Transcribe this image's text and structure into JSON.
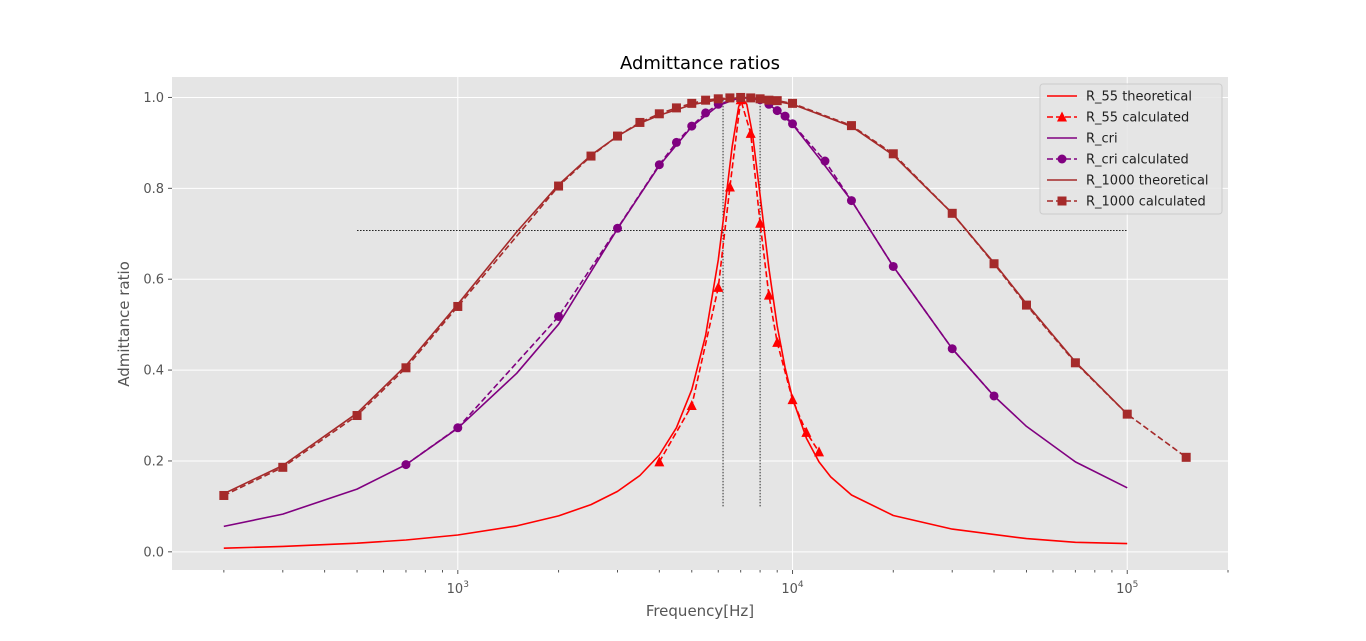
{
  "chart_data": {
    "type": "line",
    "title": "Admittance ratios",
    "xlabel": "Frequency[Hz]",
    "ylabel": "Admittance ratio",
    "xscale": "log",
    "xlim": [
      140,
      200000
    ],
    "ylim": [
      -0.04,
      1.045
    ],
    "grid": true,
    "legend_position": "top-right",
    "x_ticks": [
      {
        "value": 1000,
        "base": "10",
        "exp": "3"
      },
      {
        "value": 10000,
        "base": "10",
        "exp": "4"
      },
      {
        "value": 100000,
        "base": "10",
        "exp": "5"
      }
    ],
    "y_ticks": [
      {
        "value": 0.0,
        "label": "0.0"
      },
      {
        "value": 0.2,
        "label": "0.2"
      },
      {
        "value": 0.4,
        "label": "0.4"
      },
      {
        "value": 0.6,
        "label": "0.6"
      },
      {
        "value": 0.8,
        "label": "0.8"
      },
      {
        "value": 1.0,
        "label": "1.0"
      }
    ],
    "series": [
      {
        "name": "R_55 theoretical",
        "color": "#ff0000",
        "dash": "solid",
        "marker": "none",
        "x": [
          200,
          300,
          500,
          700,
          1000,
          1500,
          2000,
          2500,
          3000,
          3500,
          4000,
          4500,
          5000,
          5500,
          6000,
          6300,
          6600,
          6900,
          7071,
          7300,
          7600,
          8000,
          8500,
          9000,
          9500,
          10000,
          11000,
          12000,
          13000,
          15000,
          20000,
          30000,
          50000,
          70000,
          100000
        ],
        "y": [
          0.008,
          0.012,
          0.019,
          0.026,
          0.037,
          0.057,
          0.079,
          0.104,
          0.133,
          0.168,
          0.213,
          0.273,
          0.357,
          0.476,
          0.643,
          0.768,
          0.891,
          0.979,
          1.0,
          0.985,
          0.918,
          0.785,
          0.624,
          0.497,
          0.405,
          0.338,
          0.25,
          0.198,
          0.165,
          0.125,
          0.08,
          0.05,
          0.029,
          0.021,
          0.018
        ]
      },
      {
        "name": "R_55 calculated",
        "color": "#ff0000",
        "dash": "dashed",
        "marker": "triangle",
        "x": [
          4000,
          5000,
          6000,
          6500,
          7000,
          7500,
          8000,
          8500,
          9000,
          10000,
          11000,
          12000
        ],
        "y": [
          0.198,
          0.322,
          0.582,
          0.803,
          0.995,
          0.921,
          0.723,
          0.565,
          0.461,
          0.335,
          0.263,
          0.22
        ]
      },
      {
        "name": "R_cri",
        "color": "#800080",
        "dash": "solid",
        "marker": "none",
        "x": [
          200,
          300,
          500,
          700,
          1000,
          1500,
          2000,
          3000,
          4000,
          5000,
          6000,
          7000,
          7071,
          8000,
          9000,
          10000,
          12000,
          15000,
          20000,
          30000,
          40000,
          50000,
          70000,
          100000
        ],
        "y": [
          0.056,
          0.083,
          0.138,
          0.192,
          0.272,
          0.393,
          0.501,
          0.711,
          0.85,
          0.936,
          0.982,
          1.0,
          1.0,
          0.995,
          0.972,
          0.941,
          0.867,
          0.773,
          0.628,
          0.447,
          0.343,
          0.276,
          0.198,
          0.141
        ]
      },
      {
        "name": "R_cri calculated",
        "color": "#800080",
        "dash": "dashed",
        "marker": "circle",
        "x": [
          700,
          1000,
          2000,
          3000,
          4000,
          4500,
          5000,
          5500,
          6000,
          7000,
          8000,
          8500,
          9000,
          9500,
          10000,
          12500,
          15000,
          20000,
          30000,
          40000
        ],
        "y": [
          0.192,
          0.273,
          0.518,
          0.712,
          0.852,
          0.901,
          0.937,
          0.966,
          0.985,
          1.0,
          0.995,
          0.985,
          0.971,
          0.959,
          0.942,
          0.86,
          0.773,
          0.628,
          0.447,
          0.343
        ]
      },
      {
        "name": "R_1000 theoretical",
        "color": "#a52a2a",
        "dash": "solid",
        "marker": "none",
        "x": [
          200,
          300,
          500,
          700,
          1000,
          1500,
          2000,
          2500,
          3000,
          3500,
          4000,
          5000,
          6000,
          7071,
          8000,
          10000,
          15000,
          20000,
          30000,
          40000,
          50000,
          70000,
          100000
        ],
        "y": [
          0.128,
          0.19,
          0.305,
          0.41,
          0.545,
          0.704,
          0.808,
          0.873,
          0.915,
          0.943,
          0.961,
          0.984,
          0.995,
          1.0,
          0.998,
          0.985,
          0.936,
          0.873,
          0.745,
          0.636,
          0.546,
          0.418,
          0.303
        ]
      },
      {
        "name": "R_1000 calculated",
        "color": "#a52a2a",
        "dash": "dashed",
        "marker": "square",
        "x": [
          200,
          300,
          500,
          700,
          1000,
          2000,
          2500,
          3000,
          3500,
          4000,
          4500,
          5000,
          5500,
          6000,
          6500,
          7000,
          7500,
          8000,
          8500,
          9000,
          10000,
          15000,
          20000,
          30000,
          40000,
          50000,
          70000,
          100000,
          150000
        ],
        "y": [
          0.124,
          0.186,
          0.3,
          0.405,
          0.54,
          0.805,
          0.871,
          0.915,
          0.945,
          0.964,
          0.977,
          0.987,
          0.994,
          0.997,
          0.999,
          1.0,
          0.999,
          0.997,
          0.994,
          0.993,
          0.987,
          0.938,
          0.876,
          0.745,
          0.634,
          0.543,
          0.416,
          0.303,
          0.208
        ]
      }
    ],
    "reference_lines": [
      {
        "type": "horizontal",
        "y": 0.707,
        "x_from": 500,
        "x_to": 100000,
        "color": "#000000"
      },
      {
        "type": "vertical",
        "x": 6200,
        "y_from": 0.1,
        "y_to": 1.0,
        "color": "#000000"
      },
      {
        "type": "vertical",
        "x": 8000,
        "y_from": 0.1,
        "y_to": 1.0,
        "color": "#000000"
      }
    ]
  }
}
